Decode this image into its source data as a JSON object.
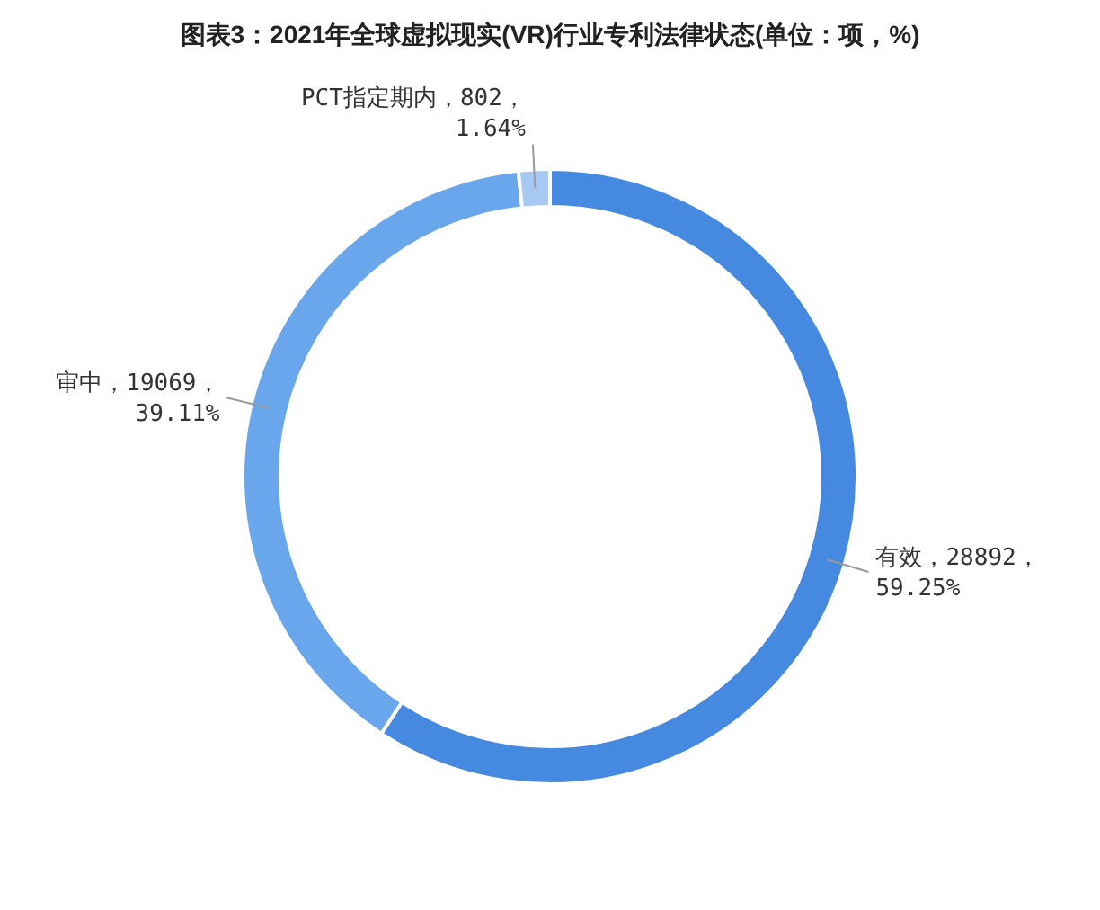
{
  "chart_data": {
    "type": "donut",
    "title": "图表3：2021年全球虚拟现实(VR)行业专利法律状态(单位：项，%)",
    "categories": [
      "有效",
      "审中",
      "PCT指定期内"
    ],
    "values": [
      28892,
      19069,
      802
    ],
    "colors": [
      "#4589e0",
      "#6aa6eb",
      "#a7c8f2"
    ],
    "value_labels": [
      "，28892，59.25%",
      "，19069，39.11%",
      "，802，1.64%"
    ],
    "legend": false
  }
}
